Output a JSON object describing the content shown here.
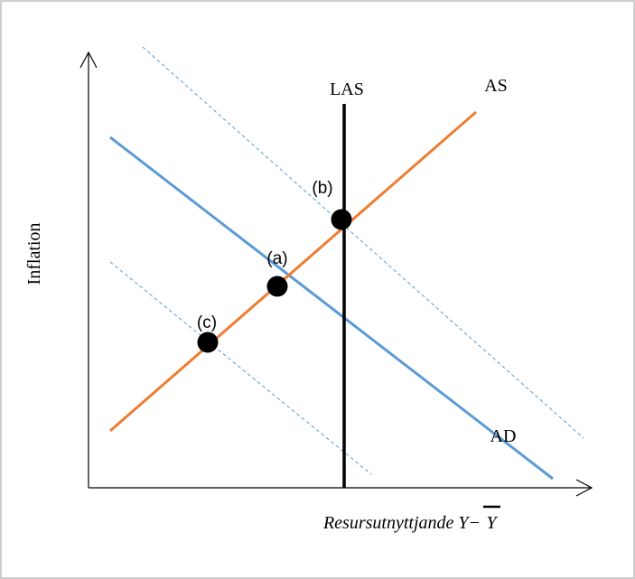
{
  "diagram": {
    "y_axis_label": "Inflation",
    "x_axis_label": {
      "text": "Resursutnyttjande Y−",
      "overlined": "Y"
    },
    "curves": {
      "las": "LAS",
      "as": "AS",
      "ad": "AD"
    },
    "points": {
      "a": "(a)",
      "b": "(b)",
      "c": "(c)"
    }
  }
}
